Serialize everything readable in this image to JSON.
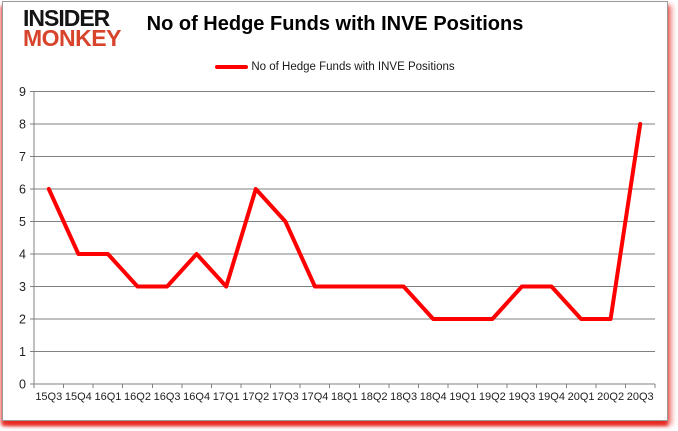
{
  "logo": {
    "line1": "INSIDER",
    "line2": "MONKEY"
  },
  "title": "No of Hedge Funds with INVE Positions",
  "legend": {
    "label": "No of Hedge Funds with INVE Positions"
  },
  "colors": {
    "line": "#ff0000",
    "grid": "#808080",
    "axis_text": "#1f1f1f",
    "logo_black": "#141414",
    "logo_red": "#d8432c",
    "shadow_red": "#e41e16"
  },
  "chart_data": {
    "type": "line",
    "title": "No of Hedge Funds with INVE Positions",
    "series_name": "No of Hedge Funds with INVE Positions",
    "categories": [
      "15Q3",
      "15Q4",
      "16Q1",
      "16Q2",
      "16Q3",
      "16Q4",
      "17Q1",
      "17Q2",
      "17Q3",
      "17Q4",
      "18Q1",
      "18Q2",
      "18Q3",
      "18Q4",
      "19Q1",
      "19Q2",
      "19Q3",
      "19Q4",
      "20Q1",
      "20Q2",
      "20Q3"
    ],
    "values": [
      6,
      4,
      4,
      3,
      3,
      4,
      3,
      6,
      5,
      3,
      3,
      3,
      3,
      2,
      2,
      2,
      3,
      3,
      2,
      2,
      8
    ],
    "xlabel": "",
    "ylabel": "",
    "ylim": [
      0,
      9
    ],
    "yticks": [
      0,
      1,
      2,
      3,
      4,
      5,
      6,
      7,
      8,
      9
    ],
    "grid": true,
    "legend_position": "top-center",
    "line_color": "#ff0000",
    "line_width": 4
  }
}
